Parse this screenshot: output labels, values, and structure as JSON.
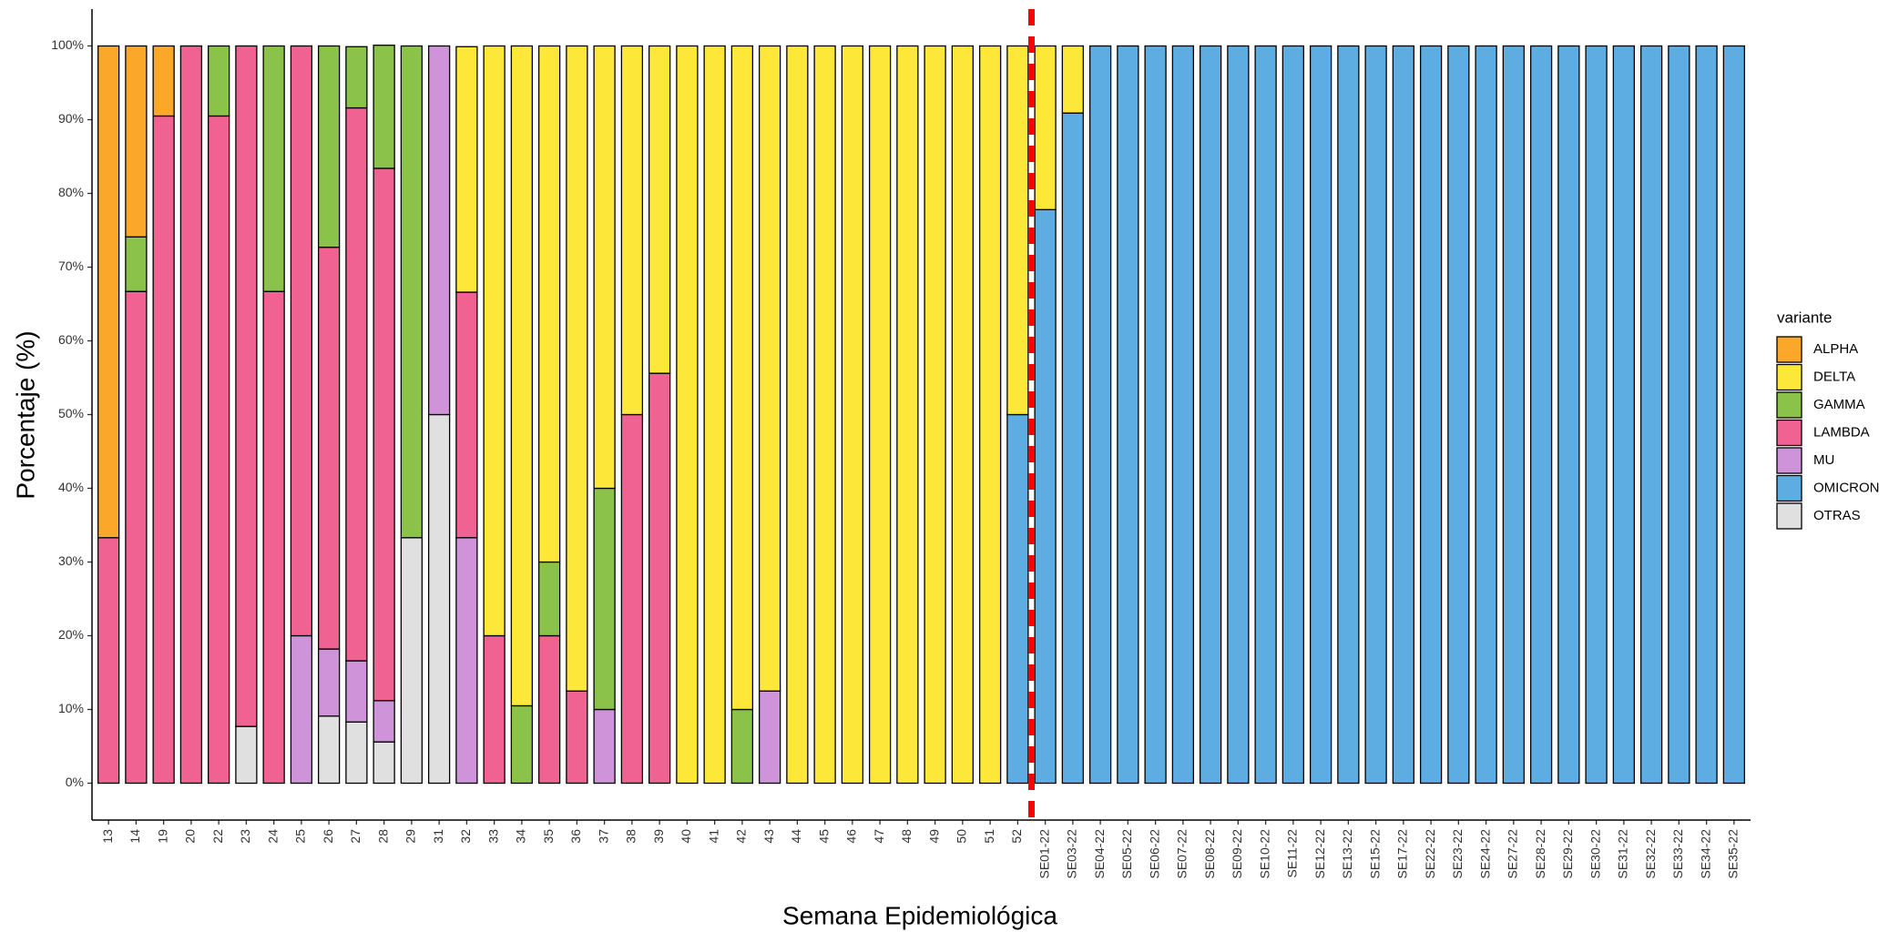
{
  "chart_data": {
    "type": "stacked_bar",
    "x_label": "Semana Epidemiológica",
    "y_label": "Porcentaje (%)",
    "legend_title": "variante",
    "legend_position": "right",
    "grid": false,
    "categories": [
      "13",
      "14",
      "19",
      "20",
      "22",
      "23",
      "24",
      "25",
      "26",
      "27",
      "28",
      "29",
      "31",
      "32",
      "33",
      "34",
      "35",
      "36",
      "37",
      "38",
      "39",
      "40",
      "41",
      "42",
      "43",
      "44",
      "45",
      "46",
      "47",
      "48",
      "49",
      "50",
      "51",
      "52",
      "SE01-22",
      "SE03-22",
      "SE04-22",
      "SE05-22",
      "SE06-22",
      "SE07-22",
      "SE08-22",
      "SE09-22",
      "SE10-22",
      "SE11-22",
      "SE12-22",
      "SE13-22",
      "SE15-22",
      "SE17-22",
      "SE22-22",
      "SE23-22",
      "SE24-22",
      "SE27-22",
      "SE28-22",
      "SE29-22",
      "SE30-22",
      "SE31-22",
      "SE32-22",
      "SE33-22",
      "SE34-22",
      "SE35-22"
    ],
    "series": [
      {
        "name": "ALPHA",
        "color": "#FBA72A",
        "values": [
          66.7,
          25.9,
          9.5,
          0,
          0,
          0,
          0,
          0,
          0,
          0,
          0,
          0,
          0,
          0,
          0,
          0,
          0,
          0,
          0,
          0,
          0,
          0,
          0,
          0,
          0,
          0,
          0,
          0,
          0,
          0,
          0,
          0,
          0,
          0,
          0,
          0,
          0,
          0,
          0,
          0,
          0,
          0,
          0,
          0,
          0,
          0,
          0,
          0,
          0,
          0,
          0,
          0,
          0,
          0,
          0,
          0,
          0,
          0,
          0,
          0
        ]
      },
      {
        "name": "DELTA",
        "color": "#FDE83A",
        "values": [
          0,
          0,
          0,
          0,
          0,
          0,
          0,
          0,
          0,
          0,
          0,
          0,
          0,
          33.3,
          80,
          89.5,
          70,
          87.5,
          60,
          50,
          44.4,
          100,
          100,
          90,
          87.5,
          100,
          100,
          100,
          100,
          100,
          100,
          100,
          100,
          50,
          22.2,
          9.1,
          0,
          0,
          0,
          0,
          0,
          0,
          0,
          0,
          0,
          0,
          0,
          0,
          0,
          0,
          0,
          0,
          0,
          0,
          0,
          0,
          0,
          0,
          0,
          0
        ]
      },
      {
        "name": "GAMMA",
        "color": "#8BC34A",
        "values": [
          0,
          7.4,
          0,
          0,
          9.5,
          0,
          33.3,
          0,
          27.3,
          8.3,
          16.7,
          66.7,
          0,
          0,
          0,
          10.5,
          10,
          0,
          30,
          0,
          0,
          0,
          0,
          10,
          0,
          0,
          0,
          0,
          0,
          0,
          0,
          0,
          0,
          0,
          0,
          0,
          0,
          0,
          0,
          0,
          0,
          0,
          0,
          0,
          0,
          0,
          0,
          0,
          0,
          0,
          0,
          0,
          0,
          0,
          0,
          0,
          0,
          0,
          0,
          0
        ]
      },
      {
        "name": "LAMBDA",
        "color": "#F06292",
        "values": [
          33.3,
          66.7,
          90.5,
          100,
          90.5,
          92.3,
          66.7,
          80,
          54.5,
          75,
          72.2,
          0,
          0,
          33.3,
          20,
          0,
          20,
          12.5,
          0,
          50,
          55.6,
          0,
          0,
          0,
          0,
          0,
          0,
          0,
          0,
          0,
          0,
          0,
          0,
          0,
          0,
          0,
          0,
          0,
          0,
          0,
          0,
          0,
          0,
          0,
          0,
          0,
          0,
          0,
          0,
          0,
          0,
          0,
          0,
          0,
          0,
          0,
          0,
          0,
          0,
          0
        ]
      },
      {
        "name": "MU",
        "color": "#CE93D8",
        "values": [
          0,
          0,
          0,
          0,
          0,
          0,
          0,
          20,
          9.1,
          8.3,
          5.6,
          0,
          50,
          33.3,
          0,
          0,
          0,
          0,
          10,
          0,
          0,
          0,
          0,
          0,
          12.5,
          0,
          0,
          0,
          0,
          0,
          0,
          0,
          0,
          0,
          0,
          0,
          0,
          0,
          0,
          0,
          0,
          0,
          0,
          0,
          0,
          0,
          0,
          0,
          0,
          0,
          0,
          0,
          0,
          0,
          0,
          0,
          0,
          0,
          0,
          0
        ]
      },
      {
        "name": "OMICRON",
        "color": "#5DADE2",
        "values": [
          0,
          0,
          0,
          0,
          0,
          0,
          0,
          0,
          0,
          0,
          0,
          0,
          0,
          0,
          0,
          0,
          0,
          0,
          0,
          0,
          0,
          0,
          0,
          0,
          0,
          0,
          0,
          0,
          0,
          0,
          0,
          0,
          0,
          50,
          77.8,
          90.9,
          100,
          100,
          100,
          100,
          100,
          100,
          100,
          100,
          100,
          100,
          100,
          100,
          100,
          100,
          100,
          100,
          100,
          100,
          100,
          100,
          100,
          100,
          100,
          100
        ]
      },
      {
        "name": "OTRAS",
        "color": "#E0E0E0",
        "values": [
          0,
          0,
          0,
          0,
          0,
          7.7,
          0,
          0,
          9.1,
          8.3,
          5.6,
          33.3,
          50,
          0,
          0,
          0,
          0,
          0,
          0,
          0,
          0,
          0,
          0,
          0,
          0,
          0,
          0,
          0,
          0,
          0,
          0,
          0,
          0,
          0,
          0,
          0,
          0,
          0,
          0,
          0,
          0,
          0,
          0,
          0,
          0,
          0,
          0,
          0,
          0,
          0,
          0,
          0,
          0,
          0,
          0,
          0,
          0,
          0,
          0,
          0
        ]
      }
    ],
    "ylim": [
      -5,
      105
    ],
    "yticks": [
      {
        "value": 0,
        "label": "0%"
      },
      {
        "value": 10,
        "label": "10%"
      },
      {
        "value": 20,
        "label": "20%"
      },
      {
        "value": 30,
        "label": "30%"
      },
      {
        "value": 40,
        "label": "40%"
      },
      {
        "value": 50,
        "label": "50%"
      },
      {
        "value": 60,
        "label": "60%"
      },
      {
        "value": 70,
        "label": "70%"
      },
      {
        "value": 80,
        "label": "80%"
      },
      {
        "value": 90,
        "label": "90%"
      },
      {
        "value": 100,
        "label": "100%"
      }
    ]
  }
}
